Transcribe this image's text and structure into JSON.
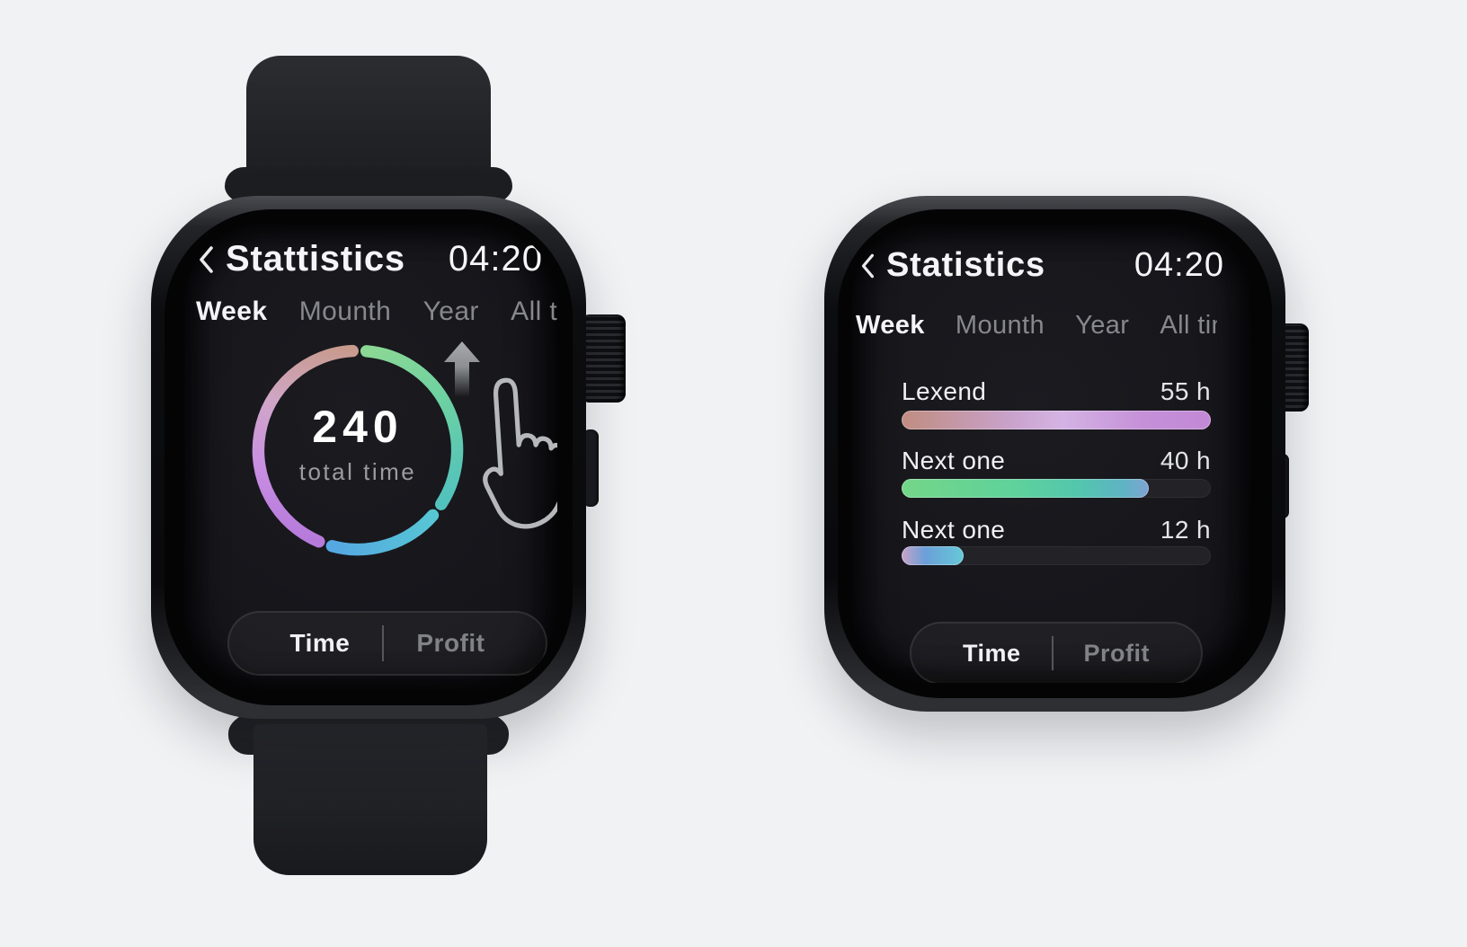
{
  "icons": {
    "back": "chevron-left",
    "gesture": "swipe-up-arrow",
    "cursor": "hand-pointer"
  },
  "colors": {
    "page_background": "#f1f2f4",
    "screen_background": "#141419",
    "active_text": "#f4f4f6",
    "inactive_text": "#87888d",
    "value_text": "#e4e5e8"
  },
  "left_watch": {
    "header": {
      "title": "Stattistics",
      "time": "04:20"
    },
    "tabs": [
      {
        "label": "Week",
        "active": true
      },
      {
        "label": "Mounth",
        "active": false
      },
      {
        "label": "Year",
        "active": false
      },
      {
        "label": "All time",
        "active": false
      }
    ],
    "donut": {
      "center_value": "240",
      "center_label": "total time"
    },
    "toggle": {
      "time_label": "Time",
      "profit_label": "Profit",
      "active": "Time"
    }
  },
  "right_watch": {
    "header": {
      "title": "Statistics",
      "time": "04:20"
    },
    "tabs": [
      {
        "label": "Week",
        "active": true
      },
      {
        "label": "Mounth",
        "active": false
      },
      {
        "label": "Year",
        "active": false
      },
      {
        "label": "All time",
        "active": false
      }
    ],
    "rows": [
      {
        "label": "Lexend",
        "value": "55 h",
        "percent": 100
      },
      {
        "label": "Next one",
        "value": "40 h",
        "percent": 80
      },
      {
        "label": "Next one",
        "value": "12 h",
        "percent": 20
      }
    ],
    "toggle": {
      "time_label": "Time",
      "profit_label": "Profit",
      "active": "Time"
    }
  },
  "chart_data": [
    {
      "type": "donut",
      "title": "total time",
      "center_value": 240,
      "center_label": "total time",
      "legend_position": "none",
      "segments": [
        {
          "name": "segment-green",
          "start_deg": 5,
          "end_deg": 123,
          "approx_share": 0.35,
          "colors": [
            "#8bd894",
            "#6ad0a4",
            "#52c2bd"
          ]
        },
        {
          "name": "segment-blue",
          "start_deg": 131,
          "end_deg": 195,
          "approx_share": 0.19,
          "colors": [
            "#57c6d4",
            "#55a8e2"
          ]
        },
        {
          "name": "segment-purple-pink",
          "start_deg": 203,
          "end_deg": 357,
          "approx_share": 0.46,
          "colors": [
            "#b67adb",
            "#c98fe2",
            "#d0a6c8",
            "#c89b8e"
          ]
        }
      ]
    },
    {
      "type": "bar",
      "categories": [
        "Lexend",
        "Next one",
        "Next one"
      ],
      "values": [
        55,
        40,
        12
      ],
      "unit": "h",
      "xlabel": "",
      "ylabel": "",
      "xmax": 55,
      "grid": false,
      "bar_colors": [
        [
          "#c08d80",
          "#d4b3e4",
          "#c289d6"
        ],
        [
          "#74d688",
          "#53c6ad",
          "#7fa3d2"
        ],
        [
          "#c9a3c8",
          "#6b9fd8",
          "#66c8d8"
        ]
      ]
    }
  ]
}
